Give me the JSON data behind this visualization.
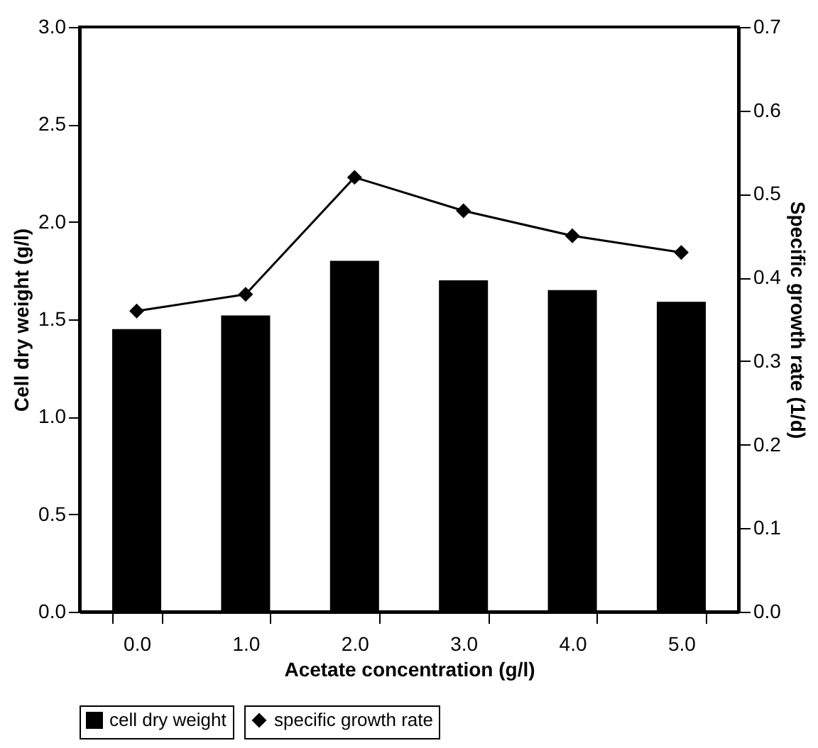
{
  "chart_data": {
    "type": "bar",
    "xlabel": "Acetate concentration (g/l)",
    "ylabel": "Cell dry weight (g/l)",
    "y2label": "Specific growth rate (1/d)",
    "categories": [
      "0.0",
      "1.0",
      "2.0",
      "3.0",
      "4.0",
      "5.0"
    ],
    "series": [
      {
        "name": "cell dry weight",
        "color": "#000000",
        "values": [
          1.45,
          1.52,
          1.8,
          1.7,
          1.65,
          1.59
        ]
      },
      {
        "name": "specific growth rate",
        "type": "line",
        "axis": "y2",
        "color": "#000000",
        "marker": "diamond",
        "values": [
          0.36,
          0.38,
          0.52,
          0.48,
          0.45,
          0.43
        ]
      }
    ],
    "ylim": [
      0,
      3
    ],
    "yticks": [
      {
        "value": 0,
        "label": "0.0"
      },
      {
        "value": 0.5,
        "label": "0.5"
      },
      {
        "value": 1,
        "label": "1.0"
      },
      {
        "value": 1.5,
        "label": "1.5"
      },
      {
        "value": 2,
        "label": "2.0"
      },
      {
        "value": 2.5,
        "label": "2.5"
      },
      {
        "value": 3,
        "label": "3.0"
      }
    ],
    "y2lim": [
      0,
      0.7
    ],
    "y2ticks": [
      {
        "value": 0,
        "label": "0.0"
      },
      0.1,
      0.2,
      0.3,
      0.4,
      0.5,
      0.6,
      0.7
    ],
    "legend": "bottom",
    "grid": false
  }
}
